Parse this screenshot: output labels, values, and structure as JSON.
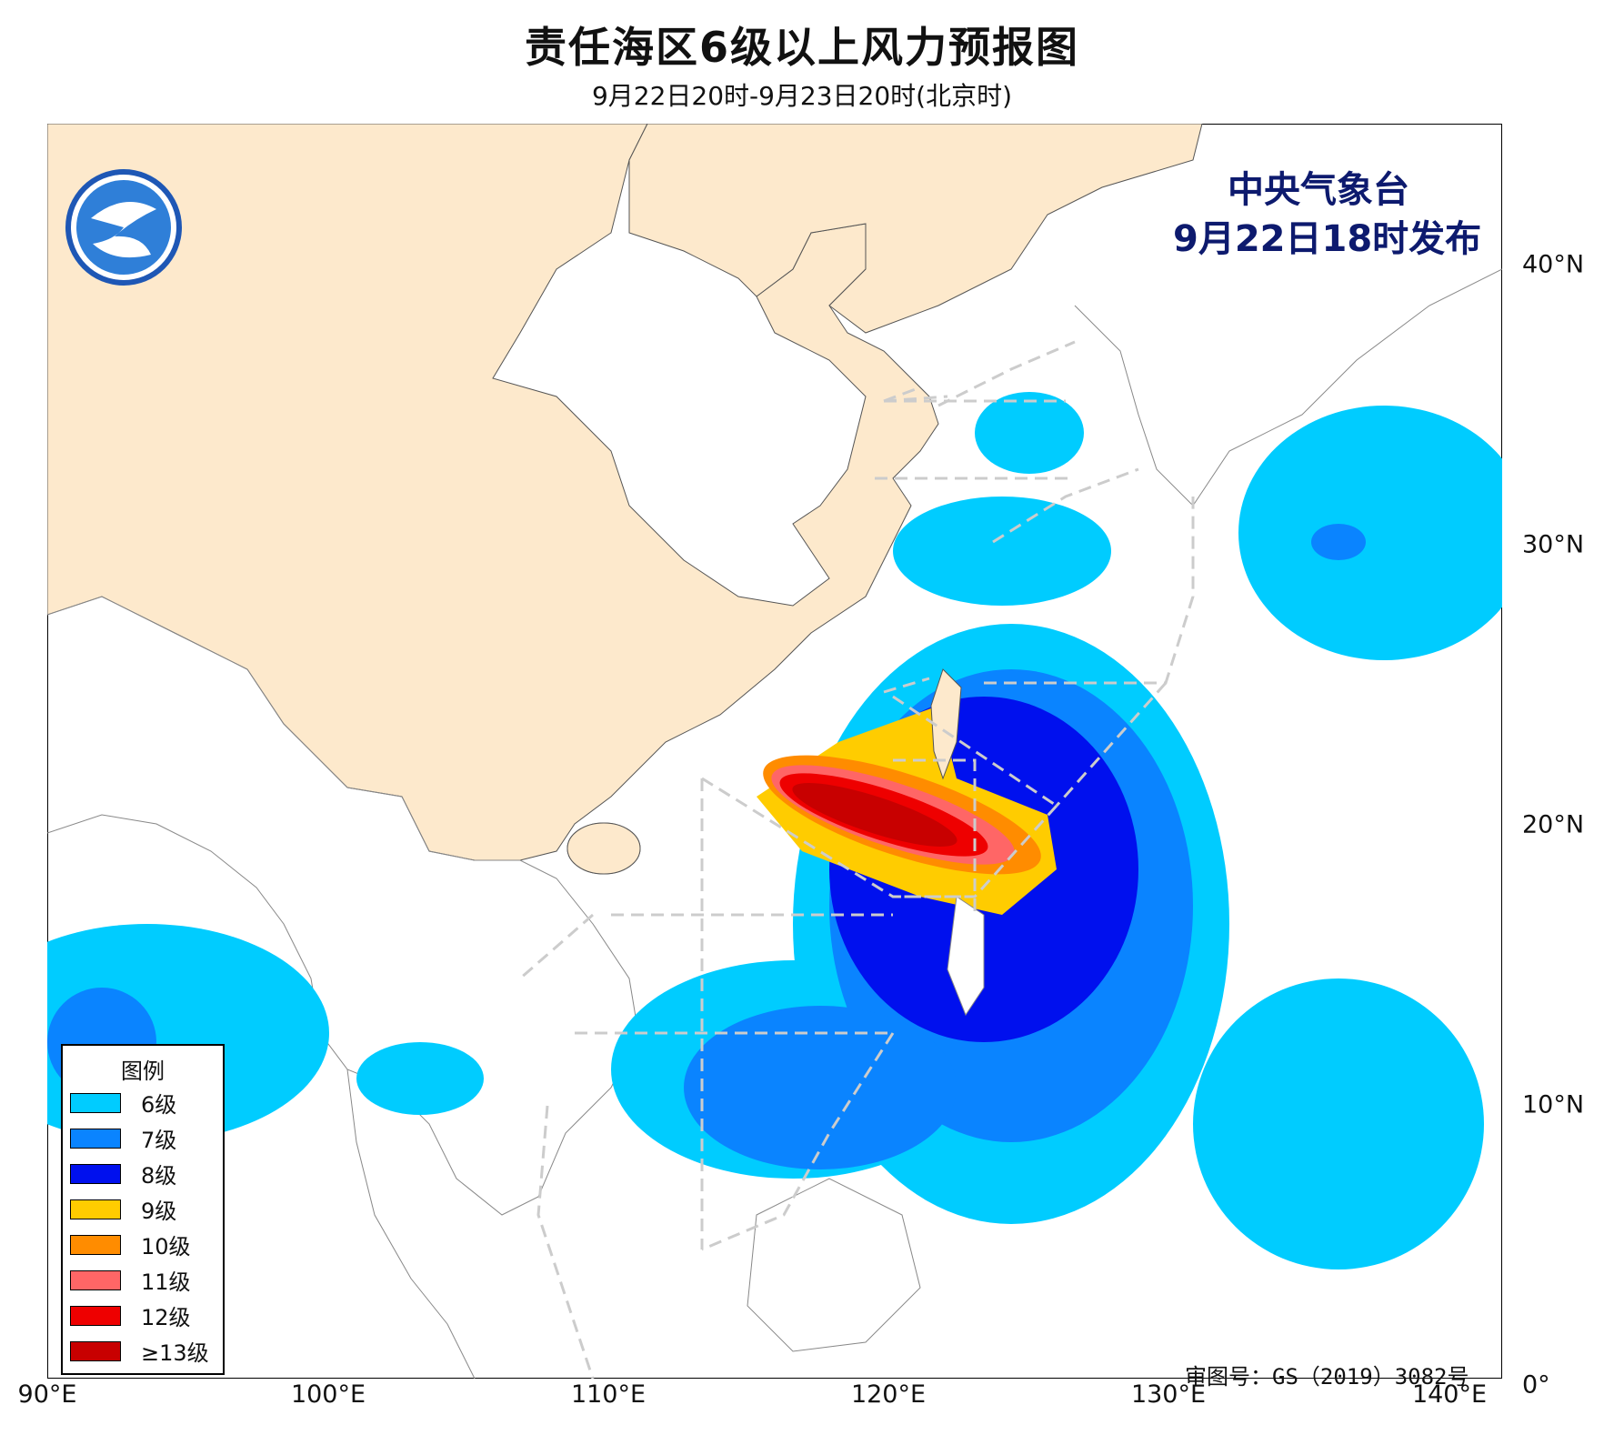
{
  "title": "责任海区6级以上风力预报图",
  "subtitle": "9月22日20时-9月23日20时(北京时)",
  "agency": "中央气象台",
  "issue_time": "9月22日18时发布",
  "credit": "审图号：GS（2019）3082号",
  "axes": {
    "x_ticks": [
      "90°E",
      "100°E",
      "110°E",
      "120°E",
      "130°E",
      "140°E"
    ],
    "y_ticks": [
      "40°N",
      "30°N",
      "20°N",
      "10°N",
      "0°"
    ]
  },
  "legend": {
    "title": "图例",
    "items": [
      {
        "label": "6级",
        "color": "#00ccff"
      },
      {
        "label": "7级",
        "color": "#0a84ff"
      },
      {
        "label": "8级",
        "color": "#0010ee"
      },
      {
        "label": "9级",
        "color": "#ffcc00"
      },
      {
        "label": "10级",
        "color": "#ff8c00"
      },
      {
        "label": "11级",
        "color": "#ff6666"
      },
      {
        "label": "12级",
        "color": "#ee0000"
      },
      {
        "label": "≥13级",
        "color": "#c80000"
      }
    ]
  },
  "colors": {
    "land_china": "#fde9cc",
    "ocean": "#ffffff",
    "zone_lines": "#cccccc"
  }
}
